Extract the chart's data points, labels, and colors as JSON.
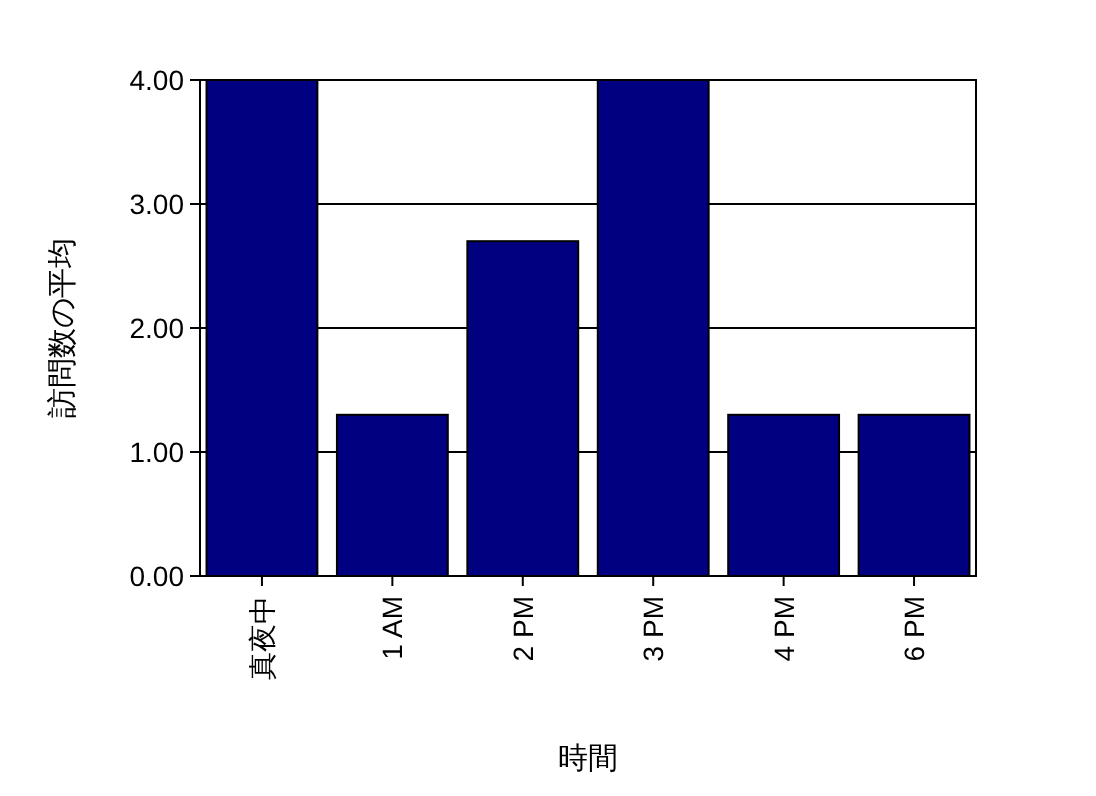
{
  "chart_data": {
    "type": "bar",
    "xlabel": "時間",
    "ylabel": "訪問数の平均",
    "categories": [
      "真夜中",
      "1 AM",
      "2 PM",
      "3 PM",
      "4 PM",
      "6 PM"
    ],
    "values": [
      4,
      1.3,
      2.7,
      4,
      1.3,
      1.3
    ],
    "color": "#000080",
    "ylim": [
      0,
      4
    ],
    "yticks": [
      {
        "value": 0,
        "label": "0.00"
      },
      {
        "value": 1,
        "label": "1.00"
      },
      {
        "value": 2,
        "label": "2.00"
      },
      {
        "value": 3,
        "label": "3.00"
      },
      {
        "value": 4,
        "label": "4.00"
      }
    ],
    "grid": "y"
  }
}
